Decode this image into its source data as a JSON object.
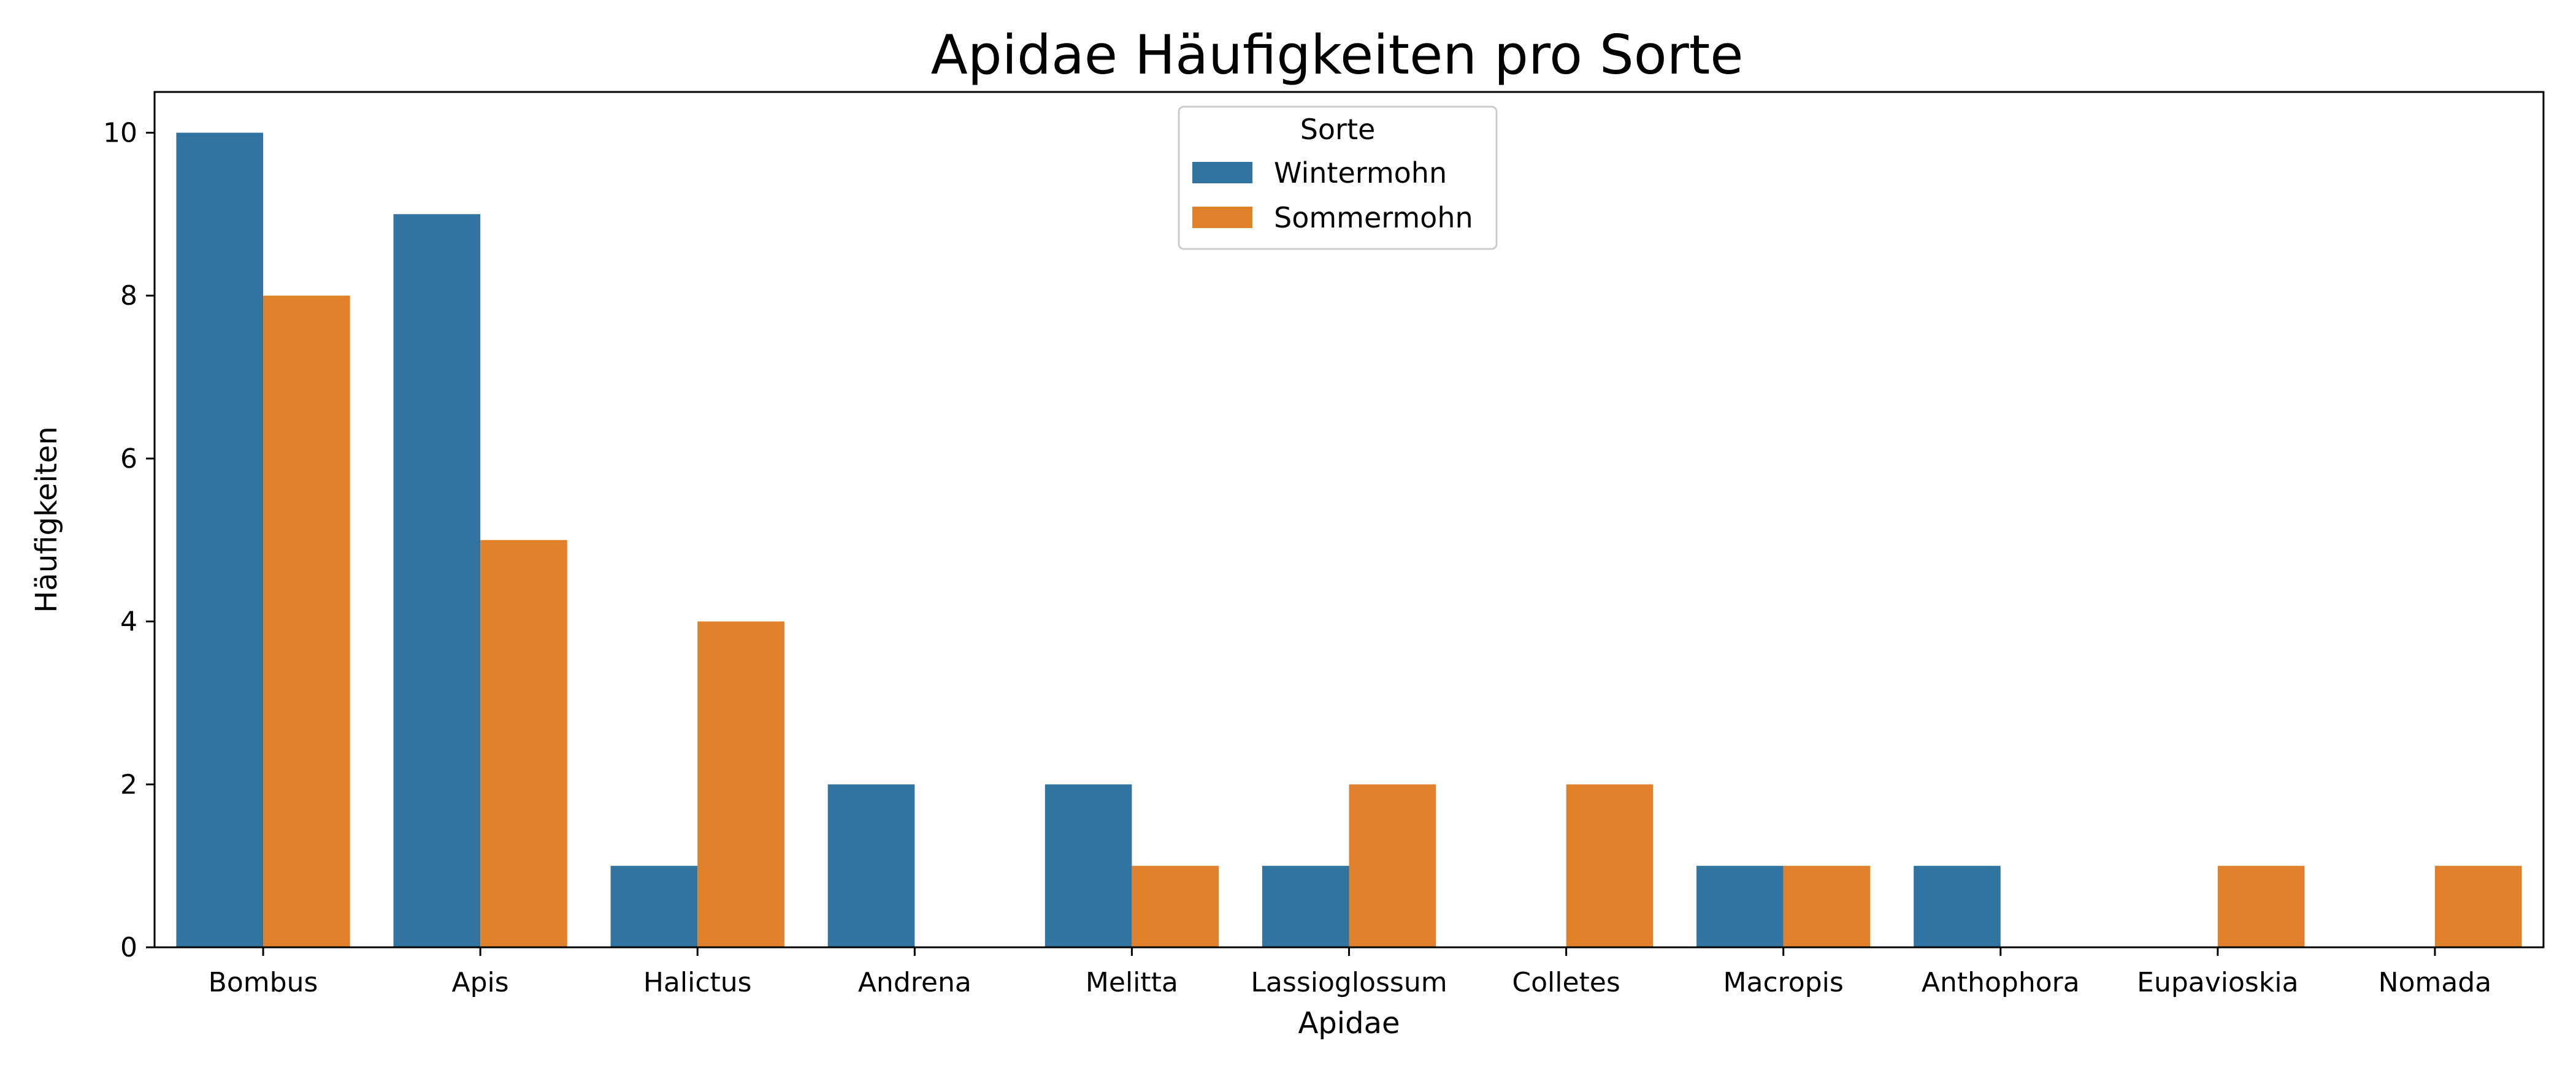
{
  "chart_data": {
    "type": "bar",
    "title": "Apidae Häufigkeiten pro Sorte",
    "xlabel": "Apidae",
    "ylabel": "Häufigkeiten",
    "categories": [
      "Bombus",
      "Apis",
      "Halictus",
      "Andrena",
      "Melitta",
      "Lassioglossum",
      "Colletes",
      "Macropis",
      "Anthophora",
      "Eupavioskia",
      "Nomada"
    ],
    "series": [
      {
        "name": "Wintermohn",
        "color": "#3274a1",
        "values": [
          10,
          9,
          1,
          2,
          2,
          1,
          0,
          1,
          1,
          0,
          0
        ]
      },
      {
        "name": "Sommermohn",
        "color": "#e1812c",
        "values": [
          8,
          5,
          4,
          0,
          1,
          2,
          2,
          1,
          0,
          1,
          1
        ]
      }
    ],
    "ylim": [
      0,
      10.5
    ],
    "yticks": [
      0,
      2,
      4,
      6,
      8,
      10
    ],
    "legend": {
      "title": "Sorte",
      "position": "top-center"
    },
    "grid": false
  }
}
